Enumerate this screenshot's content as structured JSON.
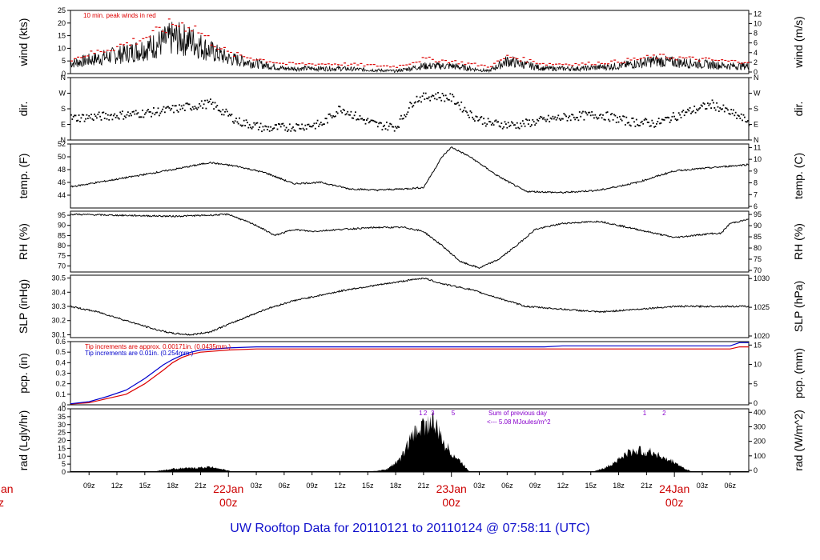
{
  "footer": "UW Rooftop Data for 20110121  to  20110124 @ 07:58:11  (UTC)",
  "colors": {
    "trace": "#000000",
    "peak": "#dd0000",
    "pcp_blue": "#0000cc",
    "pcp_red": "#dd0000",
    "note_purple": "#8800cc",
    "date": "#cc0000",
    "footer": "#1010cc"
  },
  "x_axis": {
    "hour_ticks": [
      "09z",
      "12z",
      "15z",
      "18z",
      "21z",
      "03z",
      "06z",
      "09z",
      "12z",
      "15z",
      "18z",
      "21z",
      "03z",
      "06z",
      "09z",
      "12z",
      "15z",
      "18z",
      "21z",
      "03z",
      "06z"
    ],
    "hour_offsets": [
      9,
      12,
      15,
      18,
      21,
      27,
      30,
      33,
      36,
      39,
      42,
      45,
      51,
      54,
      57,
      60,
      63,
      66,
      69,
      75,
      78
    ],
    "dates": [
      {
        "date": "22Jan",
        "zulu": "00z",
        "hour": 24
      },
      {
        "date": "23Jan",
        "zulu": "00z",
        "hour": 48
      },
      {
        "date": "24Jan",
        "zulu": "00z",
        "hour": 72
      }
    ],
    "left_cut_date": "Jan",
    "left_cut_zulu": "z",
    "range_hours": [
      7,
      80
    ]
  },
  "chart_data": [
    {
      "type": "line",
      "id": "wind",
      "ylabel": "wind (kts)",
      "ylabel_right": "wind (m/s)",
      "ylim": [
        0,
        25
      ],
      "yticks": [
        0,
        5,
        10,
        15,
        20,
        25
      ],
      "right_ticks": [
        "0",
        "2",
        "4",
        "6",
        "8",
        "10",
        "12"
      ],
      "annotation": "10 min. peak winds in red",
      "series": [
        {
          "x": [
            7,
            10,
            13,
            16,
            18,
            20,
            22,
            24,
            30,
            36,
            42,
            45,
            48,
            52,
            54,
            58,
            62,
            66,
            70,
            74,
            78,
            80
          ],
          "y": [
            4,
            6,
            8,
            11,
            14,
            13,
            9,
            6,
            2,
            2,
            1,
            3,
            3,
            1,
            5,
            2,
            2,
            3,
            5,
            4,
            3,
            3
          ]
        },
        {
          "x": [
            7,
            10,
            13,
            16,
            18,
            20,
            22,
            24,
            30,
            36,
            42,
            45,
            48,
            52,
            54,
            58,
            62,
            66,
            70,
            74,
            78,
            80
          ],
          "y": [
            6,
            9,
            12,
            16,
            20,
            19,
            13,
            8,
            4,
            4,
            3,
            6,
            5,
            3,
            7,
            4,
            4,
            5,
            7,
            6,
            5,
            5
          ]
        }
      ]
    },
    {
      "type": "scatter",
      "id": "dir",
      "ylabel": "dir.",
      "ylabel_right": "dir.",
      "ylim": [
        0,
        360
      ],
      "yticks_text": [
        "N",
        "E",
        "S",
        "W",
        "N"
      ],
      "ytick_values": [
        0,
        90,
        180,
        270,
        360
      ],
      "series": [
        {
          "x": [
            7,
            10,
            13,
            16,
            19,
            22,
            25,
            28,
            31,
            34,
            36,
            38,
            40,
            42,
            44,
            46,
            48,
            50,
            52,
            55,
            58,
            61,
            64,
            67,
            70,
            73,
            76,
            80
          ],
          "y": [
            130,
            140,
            150,
            165,
            190,
            215,
            110,
            70,
            80,
            95,
            190,
            130,
            90,
            80,
            240,
            260,
            245,
            150,
            100,
            90,
            120,
            140,
            150,
            110,
            100,
            160,
            210,
            110
          ]
        }
      ]
    },
    {
      "type": "line",
      "id": "temp",
      "ylabel": "temp. (F)",
      "ylabel_right": "temp. (C)",
      "ylim": [
        42,
        52
      ],
      "yticks": [
        44,
        46,
        48,
        50,
        52
      ],
      "right_ticks": [
        "6",
        "7",
        "8",
        "9",
        "10",
        "11"
      ],
      "series": [
        {
          "x": [
            7,
            12,
            18,
            22,
            25,
            28,
            31,
            34,
            37,
            40,
            43,
            45,
            47,
            48,
            50,
            53,
            56,
            60,
            64,
            68,
            72,
            76,
            80
          ],
          "y": [
            45.3,
            46.5,
            48,
            49.1,
            48.5,
            47.5,
            45.8,
            46,
            45,
            44.8,
            45,
            45.2,
            50,
            51.5,
            50,
            47,
            44.6,
            44.4,
            44.8,
            46,
            47.8,
            48.3,
            48.8
          ]
        }
      ]
    },
    {
      "type": "line",
      "id": "rh",
      "ylabel": "RH (%)",
      "ylabel_right": "RH (%)",
      "ylim": [
        67,
        97
      ],
      "yticks": [
        70,
        75,
        80,
        85,
        90,
        95
      ],
      "right_ticks": [
        "70",
        "75",
        "80",
        "85",
        "90",
        "95"
      ],
      "series": [
        {
          "x": [
            7,
            12,
            18,
            22,
            24,
            27,
            29,
            31,
            33,
            36,
            40,
            43,
            45,
            47,
            49,
            51,
            53,
            55,
            57,
            60,
            64,
            68,
            72,
            76,
            77,
            78,
            80
          ],
          "y": [
            95.5,
            95,
            94.5,
            95,
            95.5,
            90,
            85,
            88,
            87,
            88,
            89,
            89,
            87,
            80,
            72,
            69,
            73,
            80,
            88,
            91,
            92,
            88,
            84,
            86,
            86,
            91,
            93
          ]
        }
      ]
    },
    {
      "type": "line",
      "id": "slp",
      "ylabel": "SLP (inHg)",
      "ylabel_right": "SLP (hPa)",
      "ylim": [
        30.08,
        30.52
      ],
      "yticks": [
        30.1,
        30.2,
        30.3,
        30.4,
        30.5
      ],
      "right_ticks": [
        "1020",
        "1025",
        "1030"
      ],
      "series": [
        {
          "x": [
            7,
            10,
            13,
            16,
            18,
            20,
            22,
            25,
            28,
            31,
            34,
            37,
            40,
            43,
            45,
            47,
            50,
            53,
            56,
            60,
            64,
            68,
            72,
            76,
            80
          ],
          "y": [
            30.3,
            30.26,
            30.2,
            30.14,
            30.11,
            30.1,
            30.12,
            30.2,
            30.28,
            30.34,
            30.38,
            30.42,
            30.45,
            30.48,
            30.5,
            30.46,
            30.42,
            30.36,
            30.3,
            30.28,
            30.26,
            30.28,
            30.3,
            30.3,
            30.3
          ]
        }
      ]
    },
    {
      "type": "line",
      "id": "pcp",
      "ylabel": "pcp. (in)",
      "ylabel_right": "pcp. (mm)",
      "ylim": [
        0,
        0.6
      ],
      "yticks": [
        0,
        0.1,
        0.2,
        0.3,
        0.4,
        0.5,
        0.6
      ],
      "right_ticks": [
        "0",
        "5",
        "10",
        "15"
      ],
      "notes": [
        "Tip increments are approx. 0.00171in. (0.0435mm.)",
        "Tip increments are 0.01in. (0.254mm.)"
      ],
      "series": [
        {
          "x": [
            7,
            9,
            11,
            13,
            15,
            17,
            18,
            19,
            20,
            21,
            24,
            27,
            30,
            40,
            50,
            60,
            70,
            78,
            79,
            80
          ],
          "y": [
            0,
            0.02,
            0.06,
            0.1,
            0.2,
            0.33,
            0.4,
            0.45,
            0.48,
            0.5,
            0.52,
            0.53,
            0.53,
            0.53,
            0.53,
            0.53,
            0.53,
            0.53,
            0.55,
            0.55
          ]
        },
        {
          "x": [
            7,
            9,
            11,
            13,
            15,
            17,
            18,
            19,
            20,
            21,
            24,
            27,
            30,
            40,
            50,
            58,
            60,
            70,
            78,
            79,
            80
          ],
          "y": [
            0.01,
            0.03,
            0.08,
            0.14,
            0.25,
            0.38,
            0.43,
            0.47,
            0.5,
            0.52,
            0.54,
            0.55,
            0.55,
            0.55,
            0.55,
            0.55,
            0.56,
            0.56,
            0.56,
            0.59,
            0.59
          ]
        }
      ]
    },
    {
      "type": "area",
      "id": "rad",
      "ylabel": "rad (Lgly/hr)",
      "ylabel_right": "rad (W/m^2)",
      "ylim": [
        0,
        40
      ],
      "yticks": [
        0,
        5,
        10,
        15,
        20,
        25,
        30,
        35,
        40
      ],
      "right_ticks": [
        "0",
        "100",
        "200",
        "300",
        "400"
      ],
      "notes": [
        "Sum of previous day",
        "<--- 5.08 MJoules/m^2"
      ],
      "marks": [
        {
          "label": "1",
          "hour": 44.5
        },
        {
          "label": "2",
          "hour": 45
        },
        {
          "label": "3",
          "hour": 45.8
        },
        {
          "label": "5",
          "hour": 48
        },
        {
          "label": "1",
          "hour": 68.6
        },
        {
          "label": "2",
          "hour": 70.7
        }
      ],
      "series": [
        {
          "x": [
            15.5,
            17,
            18,
            19,
            20,
            21,
            22,
            23,
            24.5,
            39,
            41,
            42.5,
            43.5,
            44.5,
            45.5,
            46,
            46.5,
            47,
            48,
            49,
            50,
            63,
            64.5,
            66,
            67,
            68,
            69,
            70,
            71,
            72,
            73,
            74
          ],
          "y": [
            0,
            1.5,
            2.5,
            3,
            3,
            3.5,
            4,
            3,
            0,
            0,
            2,
            10,
            25,
            35,
            38,
            40,
            33,
            25,
            15,
            8,
            0,
            0,
            3,
            10,
            15,
            17,
            16,
            15,
            10,
            8,
            3,
            0
          ]
        }
      ]
    }
  ]
}
